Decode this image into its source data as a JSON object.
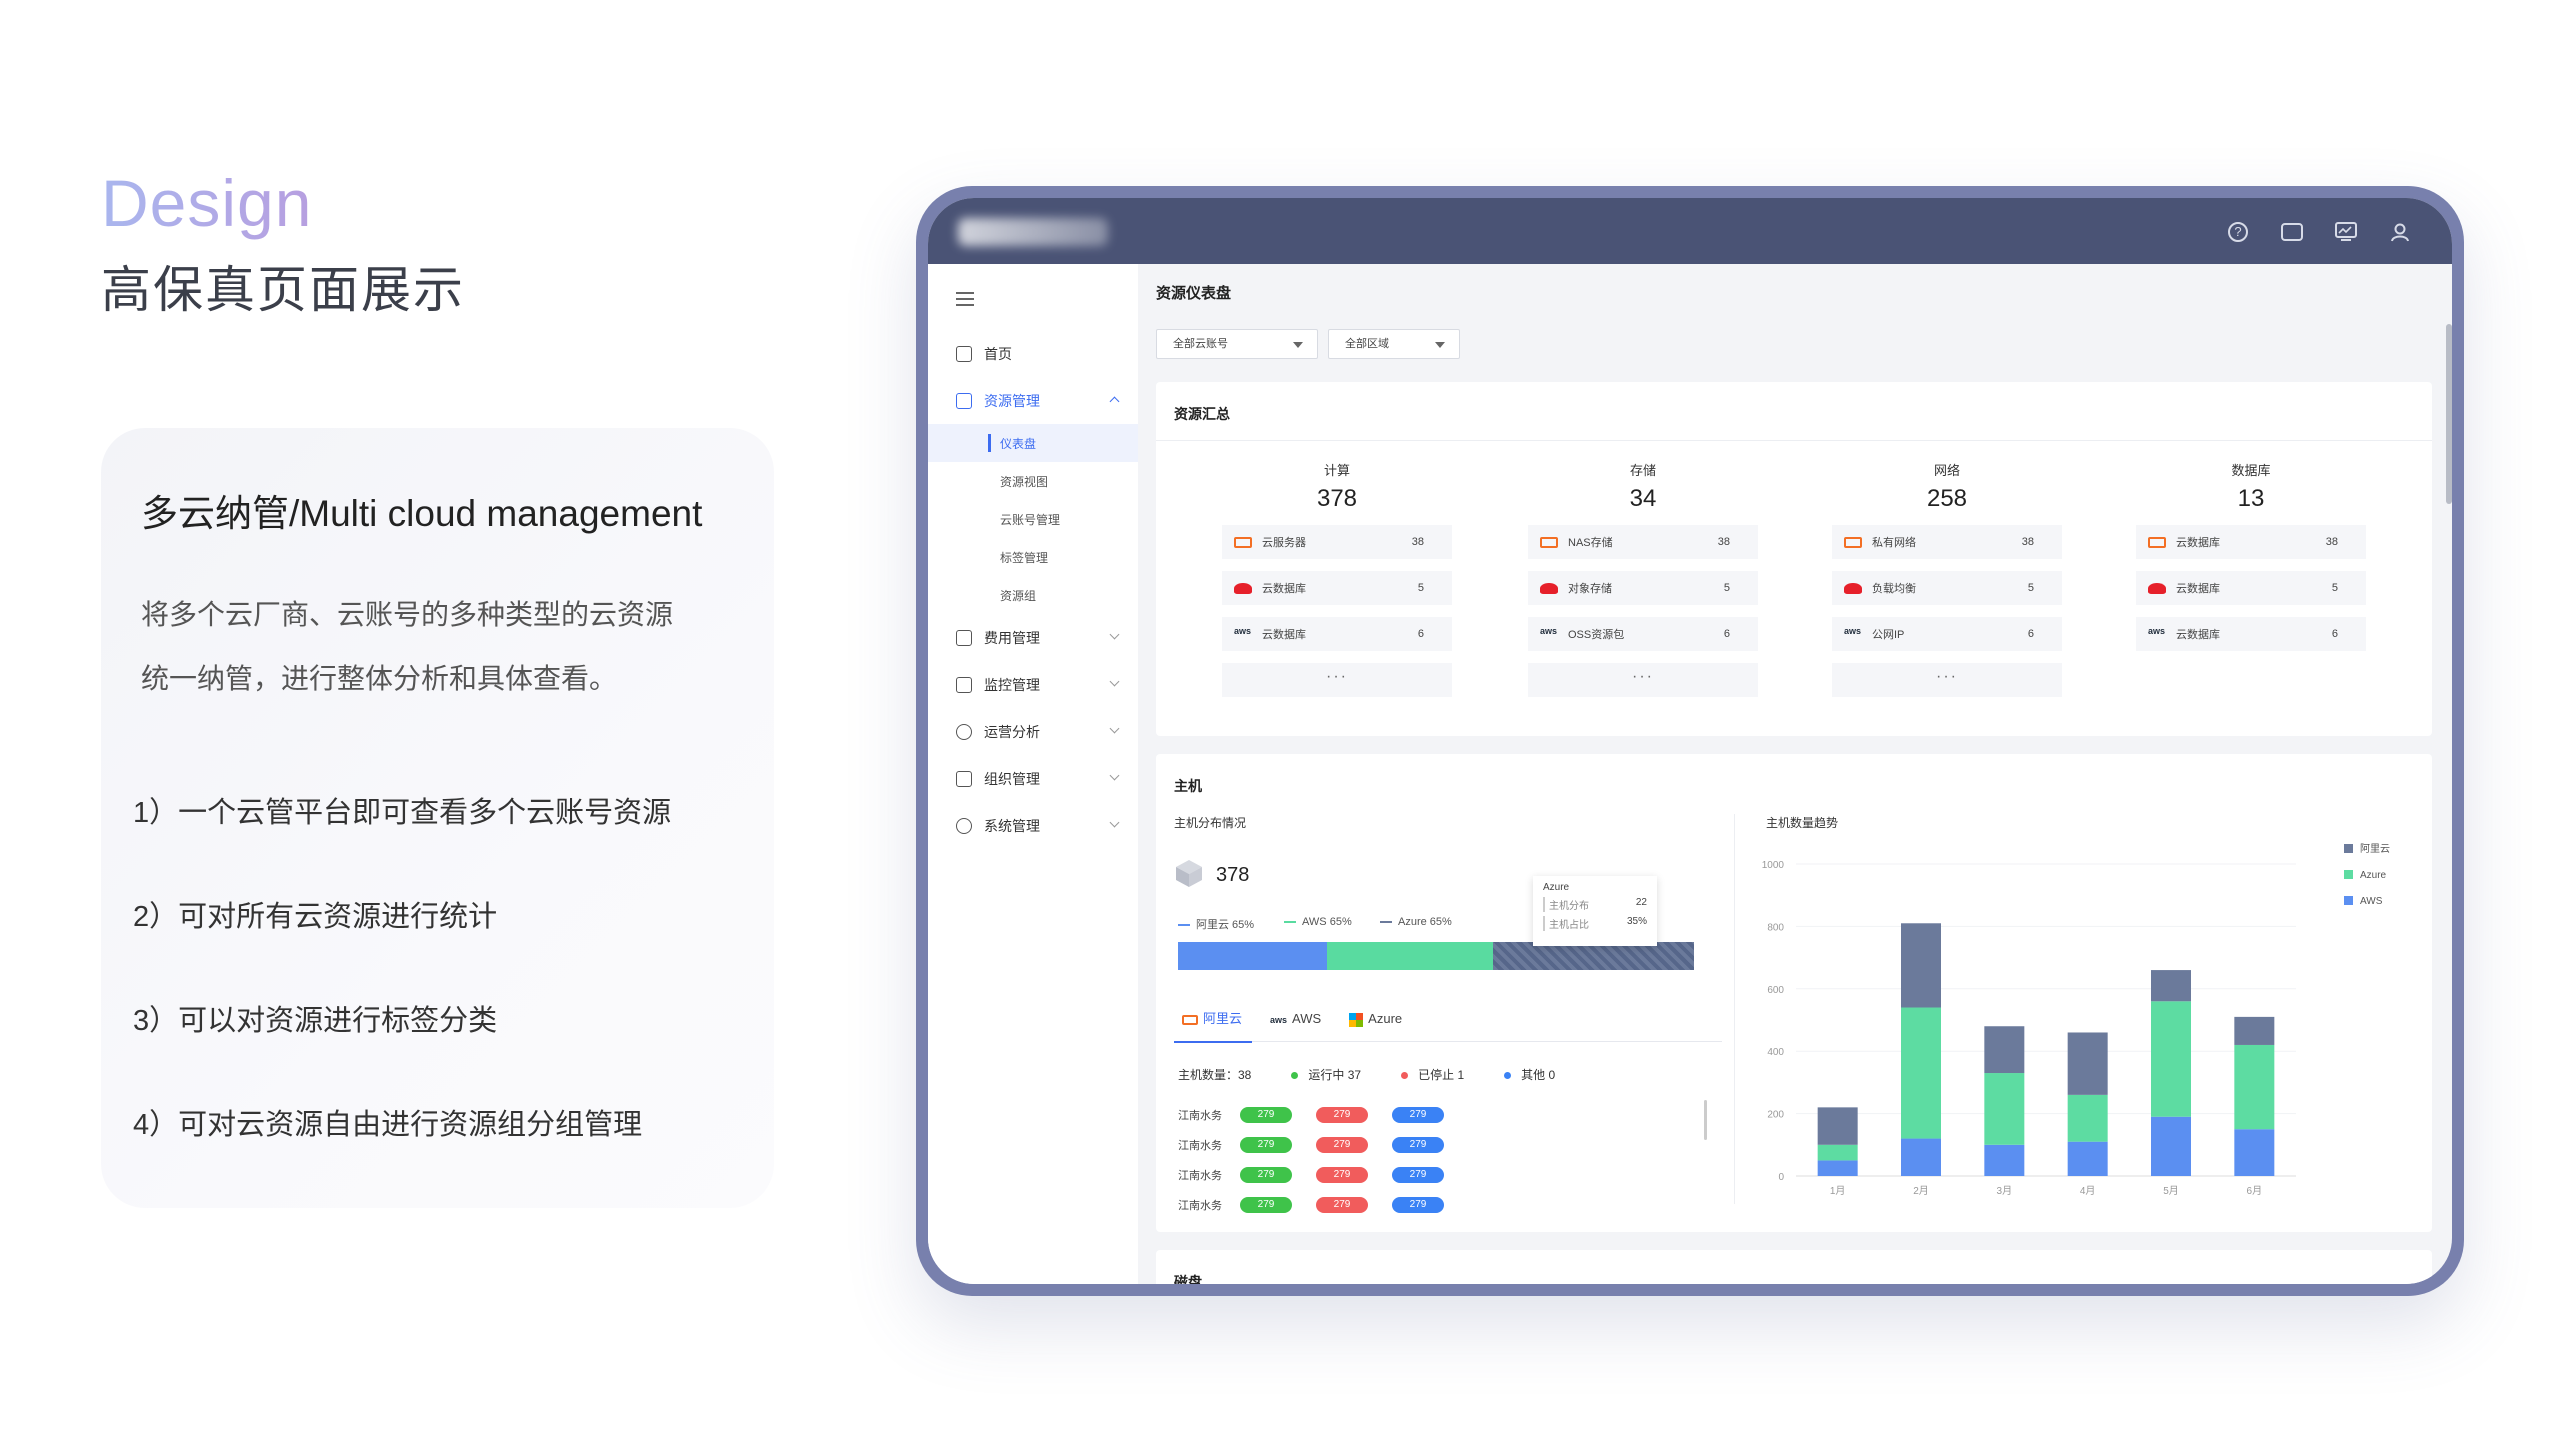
{
  "intro": {
    "design_word": "Design",
    "subtitle": "高保真页面展示",
    "card_title": "多云纳管/Multi cloud management",
    "card_desc_1": "将多个云厂商、云账号的多种类型的云资源",
    "card_desc_2": "统一纳管，进行整体分析和具体查看。",
    "points": [
      "1）一个云管平台即可查看多个云账号资源",
      "2）可对所有云资源进行统计",
      "3）可以对资源进行标签分类",
      "4）可对云资源自由进行资源组分组管理"
    ]
  },
  "topbar": {
    "icons": [
      "help-icon",
      "message-icon",
      "monitor-icon",
      "user-icon"
    ]
  },
  "sidebar": {
    "items": [
      {
        "label": "首页"
      },
      {
        "label": "资源管理"
      },
      {
        "label": "费用管理"
      },
      {
        "label": "监控管理"
      },
      {
        "label": "运营分析"
      },
      {
        "label": "组织管理"
      },
      {
        "label": "系统管理"
      }
    ],
    "sub_items": [
      "仪表盘",
      "资源视图",
      "云账号管理",
      "标签管理",
      "资源组"
    ]
  },
  "page": {
    "title": "资源仪表盘",
    "filter_account": "全部云账号",
    "filter_region": "全部区域"
  },
  "summary": {
    "title": "资源汇总",
    "more": "···",
    "columns": [
      {
        "name": "计算",
        "total": "378",
        "rows": [
          {
            "icon": "aliyun-icon",
            "label": "云服务器",
            "value": "38"
          },
          {
            "icon": "huawei-icon",
            "label": "云数据库",
            "value": "5"
          },
          {
            "icon": "aws-icon",
            "label": "云数据库",
            "value": "6"
          }
        ],
        "has_more": true
      },
      {
        "name": "存储",
        "total": "34",
        "rows": [
          {
            "icon": "aliyun-icon",
            "label": "NAS存储",
            "value": "38"
          },
          {
            "icon": "huawei-icon",
            "label": "对象存储",
            "value": "5"
          },
          {
            "icon": "aws-icon",
            "label": "OSS资源包",
            "value": "6"
          }
        ],
        "has_more": true
      },
      {
        "name": "网络",
        "total": "258",
        "rows": [
          {
            "icon": "aliyun-icon",
            "label": "私有网络",
            "value": "38"
          },
          {
            "icon": "huawei-icon",
            "label": "负载均衡",
            "value": "5"
          },
          {
            "icon": "aws-icon",
            "label": "公网IP",
            "value": "6"
          }
        ],
        "has_more": true
      },
      {
        "name": "数据库",
        "total": "13",
        "rows": [
          {
            "icon": "aliyun-icon",
            "label": "云数据库",
            "value": "38"
          },
          {
            "icon": "huawei-icon",
            "label": "云数据库",
            "value": "5"
          },
          {
            "icon": "aws-icon",
            "label": "云数据库",
            "value": "6"
          }
        ],
        "has_more": false
      }
    ]
  },
  "host": {
    "title": "主机",
    "dist_title": "主机分布情况",
    "total": "378",
    "legend": [
      {
        "label": "阿里云 65%",
        "color": "#5b8ff1"
      },
      {
        "label": "AWS 65%",
        "color": "#59dba0"
      },
      {
        "label": "Azure 65%",
        "color": "#6b7a9b"
      }
    ],
    "tooltip": {
      "title": "Azure",
      "row1_label": "主机分布",
      "row1_value": "22",
      "row2_label": "主机占比",
      "row2_value": "35%"
    },
    "tabs": [
      {
        "label": "阿里云",
        "icon": "aliyun-icon"
      },
      {
        "label": "AWS",
        "icon": "aws-icon"
      },
      {
        "label": "Azure",
        "icon": "azure-icon"
      }
    ],
    "stats": {
      "count_label": "主机数量：38",
      "running_label": "运行中",
      "running_value": "37",
      "stopped_label": "已停止",
      "stopped_value": "1",
      "other_label": "其他",
      "other_value": "0"
    },
    "rows": [
      {
        "name": "江南水务",
        "a": "279",
        "b": "279",
        "c": "279"
      },
      {
        "name": "江南水务",
        "a": "279",
        "b": "279",
        "c": "279"
      },
      {
        "name": "江南水务",
        "a": "279",
        "b": "279",
        "c": "279"
      },
      {
        "name": "江南水务",
        "a": "279",
        "b": "279",
        "c": "279"
      }
    ],
    "trend_title": "主机数量趋势"
  },
  "disk": {
    "title": "磁盘"
  },
  "chart_data": {
    "type": "bar",
    "stacked": true,
    "categories": [
      "1月",
      "2月",
      "3月",
      "4月",
      "5月",
      "6月"
    ],
    "series": [
      {
        "name": "AWS",
        "color": "#5b8ff1",
        "values": [
          50,
          120,
          100,
          110,
          190,
          150
        ]
      },
      {
        "name": "Azure",
        "color": "#5ddca2",
        "values": [
          50,
          420,
          230,
          150,
          370,
          270
        ]
      },
      {
        "name": "阿里云",
        "color": "#6b7a9b",
        "values": [
          120,
          270,
          150,
          200,
          100,
          90
        ]
      }
    ],
    "legend": [
      "阿里云",
      "Azure",
      "AWS"
    ],
    "legend_colors": [
      "#6b7a9b",
      "#5ddca2",
      "#5b8ff1"
    ],
    "y_ticks": [
      0,
      200,
      400,
      600,
      800,
      1000
    ],
    "ylim": [
      0,
      1000
    ],
    "legend_position": "top-right"
  }
}
